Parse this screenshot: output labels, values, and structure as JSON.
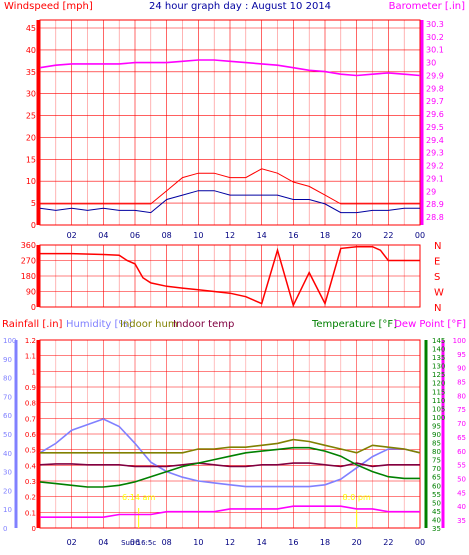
{
  "title": "24 hour graph day : August 10 2014",
  "colors": {
    "wind": "#ff0000",
    "gust_avg": "#0000a0",
    "baro": "#ff00ff",
    "dir": "#ff0000",
    "rain_axis": "#ff0000",
    "humidity": "#8080ff",
    "indoor_hum": "#808000",
    "indoor_temp": "#800040",
    "temperature": "#008000",
    "dewpoint": "#ff00ff",
    "sun": "#ffff00",
    "grid": "#ff0000"
  },
  "x_ticks": [
    "02",
    "04",
    "06",
    "08",
    "10",
    "12",
    "14",
    "16",
    "18",
    "20",
    "22",
    "00"
  ],
  "panel1": {
    "left_label": "Windspeed [mph]",
    "right_label": "Barometer [.in]",
    "left_ticks": [
      "0",
      "5",
      "10",
      "15",
      "20",
      "25",
      "30",
      "35",
      "40",
      "45"
    ],
    "right_ticks": [
      "28.8",
      "28.9",
      "29",
      "29.1",
      "29.2",
      "29.3",
      "29.4",
      "29.5",
      "29.6",
      "29.7",
      "29.8",
      "29.9",
      "30",
      "30.1",
      "30.2",
      "30.3"
    ]
  },
  "panel2": {
    "left_ticks": [
      "0",
      "90",
      "180",
      "270",
      "360"
    ],
    "right_labels": [
      "N",
      "W",
      "S",
      "E",
      "N"
    ]
  },
  "panel3": {
    "labels": {
      "rainfall": "Rainfall [.in]",
      "humidity": "Humidity [%]",
      "indoor_hum": "Indoor hum",
      "indoor_temp": "Indoor temp",
      "temperature": "Temperature [°F]",
      "dewpoint": "Dew Point [°F]"
    },
    "hum_ticks": [
      "0",
      "10",
      "20",
      "30",
      "40",
      "50",
      "60",
      "70",
      "80",
      "90",
      "100"
    ],
    "rain_ticks": [
      "0",
      "0.1",
      "0.2",
      "0.3",
      "0.4",
      "0.5",
      "0.6",
      "0.7",
      "0.8",
      "0.9",
      "1",
      "1.1",
      "1.2"
    ],
    "temp_ticks": [
      "35",
      "40",
      "45",
      "50",
      "55",
      "60",
      "65",
      "70",
      "75",
      "80",
      "85",
      "90",
      "95",
      "100",
      "105",
      "110",
      "115",
      "120",
      "125",
      "130",
      "135",
      "140",
      "145"
    ],
    "dew_ticks": [
      "35",
      "40",
      "45",
      "50",
      "55",
      "60",
      "65",
      "70",
      "75",
      "80",
      "85",
      "90",
      "95",
      "100"
    ],
    "sunrise_label": "6:14 am",
    "sunset_label": "8:0 pm",
    "sun_caption": "Sun 16:5c",
    "x_ticks": [
      "02",
      "04",
      "06",
      "08",
      "10",
      "12",
      "14",
      "16",
      "18",
      "20",
      "22",
      "00"
    ]
  },
  "chart_data": [
    {
      "type": "line",
      "title": "24 hour graph day : August 10 2014",
      "xlabel": "",
      "x_unit": "hour",
      "ylabel": "Windspeed [mph]",
      "ylim": [
        0,
        45
      ],
      "y2label": "Barometer [.in]",
      "y2lim": [
        28.75,
        30.35
      ],
      "series": [
        {
          "axis": "left",
          "x": [
            0,
            1,
            2,
            3,
            4,
            5,
            6,
            7,
            8,
            9,
            10,
            11,
            12,
            13,
            14,
            15,
            16,
            17,
            18,
            19,
            20,
            21,
            22,
            23,
            24
          ],
          "values": [
            2,
            1.5,
            2,
            1.5,
            2,
            1.5,
            1.5,
            1,
            4,
            5,
            6,
            6,
            5,
            5,
            5,
            5,
            4,
            4,
            3,
            1,
            1,
            1.5,
            1.5,
            2,
            2
          ]
        },
        {
          "axis": "left",
          "x": [
            0,
            1,
            2,
            3,
            4,
            5,
            6,
            7,
            8,
            9,
            10,
            11,
            12,
            13,
            14,
            15,
            16,
            17,
            18,
            19,
            20,
            21,
            22,
            23,
            24
          ],
          "values": [
            3,
            3,
            3,
            3,
            3,
            3,
            3,
            3,
            6,
            9,
            10,
            10,
            9,
            9,
            11,
            10,
            8,
            7,
            5,
            3,
            3,
            3,
            3,
            3,
            3
          ]
        },
        {
          "name": "Barometer [.in]",
          "axis": "right",
          "x": [
            0,
            1,
            2,
            3,
            4,
            5,
            6,
            7,
            8,
            9,
            10,
            11,
            12,
            13,
            14,
            15,
            16,
            17,
            18,
            19,
            20,
            21,
            22,
            23,
            24
          ],
          "values": [
            29.96,
            29.98,
            29.99,
            29.99,
            29.99,
            29.99,
            30.0,
            30.0,
            30.0,
            30.01,
            30.02,
            30.02,
            30.01,
            30.0,
            29.99,
            29.98,
            29.96,
            29.94,
            29.93,
            29.91,
            29.9,
            29.91,
            29.92,
            29.91,
            29.9
          ]
        }
      ]
    },
    {
      "type": "line",
      "ylabel": "",
      "ylim": [
        0,
        360
      ],
      "series": [
        {
          "x": [
            0,
            2,
            4,
            5,
            5.5,
            6,
            6.5,
            7,
            8,
            9,
            10,
            11,
            12,
            13,
            14,
            15,
            16,
            17,
            18,
            19,
            20,
            21,
            21.5,
            22,
            24
          ],
          "values": [
            310,
            310,
            305,
            300,
            270,
            250,
            170,
            140,
            120,
            110,
            100,
            90,
            80,
            60,
            20,
            330,
            10,
            200,
            20,
            340,
            350,
            350,
            330,
            270,
            270
          ]
        }
      ]
    },
    {
      "type": "line",
      "series": [
        {
          "name": "Humidity [%]",
          "axis": "humidity",
          "x": [
            0,
            1,
            2,
            3,
            4,
            5,
            6,
            7,
            8,
            9,
            10,
            11,
            12,
            13,
            14,
            15,
            16,
            17,
            18,
            19,
            20,
            21,
            22,
            23,
            24
          ],
          "values": [
            40,
            45,
            52,
            55,
            58,
            54,
            45,
            35,
            30,
            27,
            25,
            24,
            23,
            22,
            22,
            22,
            22,
            22,
            23,
            26,
            32,
            38,
            42,
            42,
            40
          ]
        },
        {
          "name": "Indoor hum",
          "axis": "humidity",
          "x": [
            0,
            1,
            2,
            3,
            4,
            5,
            6,
            7,
            8,
            9,
            10,
            11,
            12,
            13,
            14,
            15,
            16,
            17,
            18,
            19,
            20,
            21,
            22,
            23,
            24
          ],
          "values": [
            40,
            40,
            40,
            40,
            40,
            40,
            40,
            40,
            40,
            40,
            42,
            42,
            43,
            43,
            44,
            45,
            47,
            46,
            44,
            42,
            40,
            44,
            43,
            42,
            40
          ]
        },
        {
          "name": "Indoor temp",
          "axis": "temperature",
          "x": [
            0,
            1,
            2,
            3,
            4,
            5,
            6,
            7,
            8,
            9,
            10,
            11,
            12,
            13,
            14,
            15,
            16,
            17,
            18,
            19,
            20,
            21,
            22,
            23,
            24
          ],
          "values": [
            72,
            72.5,
            72.5,
            72,
            72,
            72,
            71,
            71,
            71,
            72,
            73,
            72,
            71,
            71,
            72,
            72,
            73,
            73,
            72,
            71,
            73,
            71,
            72,
            72,
            72
          ]
        },
        {
          "name": "Temperature [°F]",
          "axis": "temperature",
          "x": [
            0,
            1,
            2,
            3,
            4,
            5,
            6,
            7,
            8,
            9,
            10,
            11,
            12,
            13,
            14,
            15,
            16,
            17,
            18,
            19,
            20,
            21,
            22,
            23,
            24
          ],
          "values": [
            62,
            61,
            60,
            59,
            59,
            60,
            62,
            65,
            68,
            71,
            73,
            75,
            77,
            79,
            80,
            81,
            82,
            82,
            80,
            77,
            72,
            68,
            65,
            64,
            64
          ]
        },
        {
          "name": "Dew Point [°F]",
          "axis": "dewpoint",
          "x": [
            0,
            1,
            2,
            3,
            4,
            5,
            6,
            7,
            8,
            9,
            10,
            11,
            12,
            13,
            14,
            15,
            16,
            17,
            18,
            19,
            20,
            21,
            22,
            23,
            24
          ],
          "values": [
            36,
            36,
            36,
            36,
            36,
            37,
            37,
            37,
            38,
            38,
            38,
            38,
            39,
            39,
            39,
            39,
            40,
            40,
            40,
            40,
            39,
            39,
            38,
            38,
            38
          ]
        }
      ]
    }
  ]
}
